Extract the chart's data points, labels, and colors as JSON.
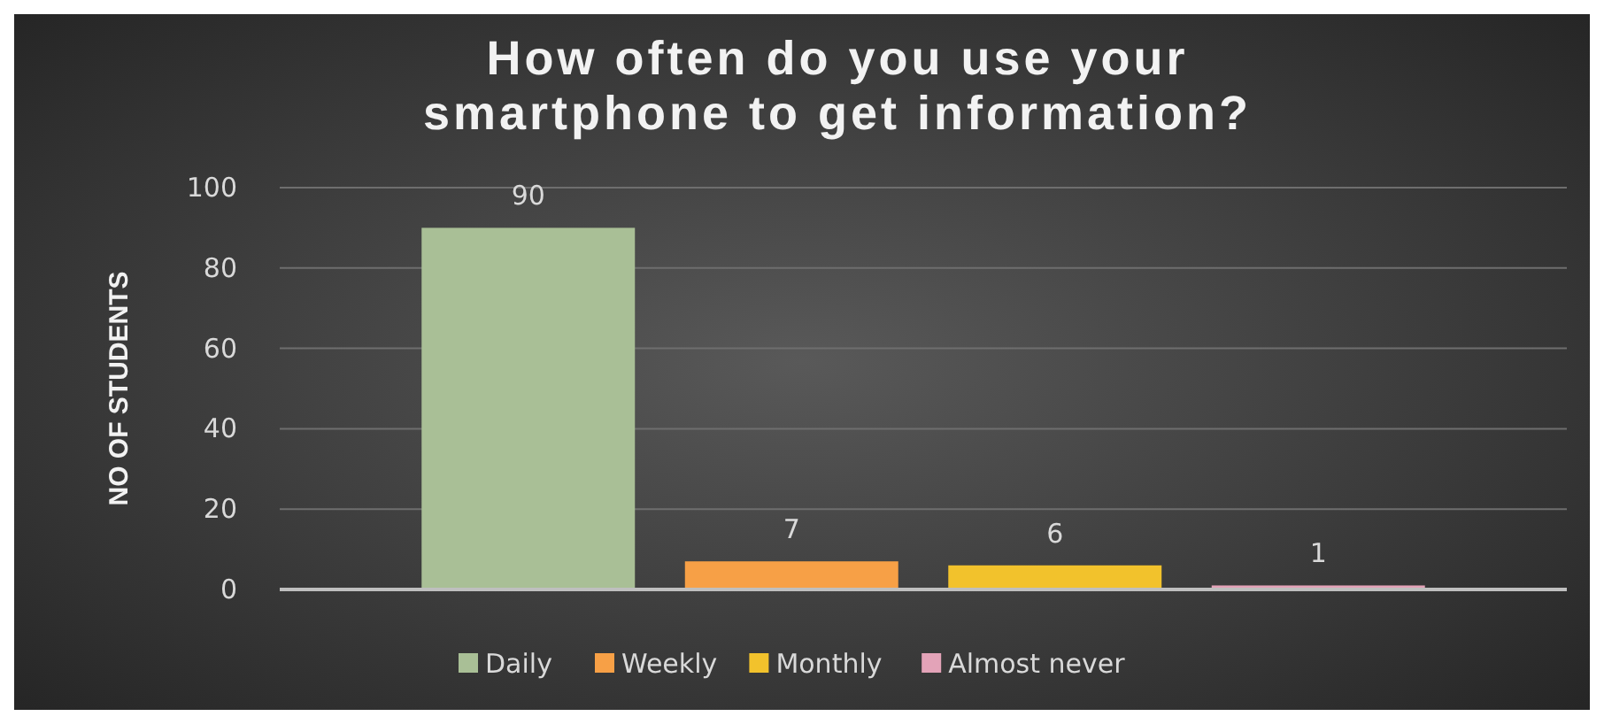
{
  "chart_data": {
    "type": "bar",
    "title": "How often do you use your smartphone to get information?",
    "ylabel": "NO OF STUDENTS",
    "categories": [
      null
    ],
    "series": [
      {
        "name": "Daily",
        "color": "#a9bf96",
        "values": [
          90
        ]
      },
      {
        "name": "Weekly",
        "color": "#f7a046",
        "values": [
          7
        ]
      },
      {
        "name": "Monthly",
        "color": "#f2c22c",
        "values": [
          6
        ]
      },
      {
        "name": "Almost never",
        "color": "#e3a3b8",
        "values": [
          1
        ]
      }
    ],
    "ylim": [
      0,
      100
    ],
    "yticks": [
      0,
      20,
      40,
      60,
      80,
      100
    ],
    "grid": "y",
    "legend": "bottom",
    "data_labels": true
  }
}
